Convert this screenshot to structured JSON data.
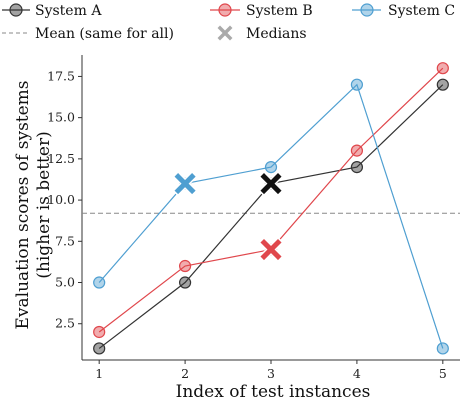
{
  "chart_data": {
    "type": "line",
    "xlabel": "Index of test instances",
    "ylabel_line1": "Evaluation scores of systems",
    "ylabel_line2": "(higher is better)",
    "x": [
      1,
      2,
      3,
      4,
      5
    ],
    "x_ticks": [
      "1",
      "2",
      "3",
      "4",
      "5"
    ],
    "y_ticks": [
      "2.5",
      "5.0",
      "7.5",
      "10.0",
      "12.5",
      "15.0",
      "17.5"
    ],
    "y_tick_values": [
      2.5,
      5.0,
      7.5,
      10.0,
      12.5,
      15.0,
      17.5
    ],
    "xlim": [
      0.8,
      5.2
    ],
    "ylim": [
      0.3,
      18.8
    ],
    "grid": false,
    "legend_position": "top",
    "series": [
      {
        "name": "System A",
        "color": "#333333",
        "values": [
          1,
          5,
          11,
          12,
          17
        ],
        "median": {
          "x": 3,
          "y": 11
        }
      },
      {
        "name": "System B",
        "color": "#e0474c",
        "values": [
          2,
          6,
          7,
          13,
          18
        ],
        "median": {
          "x": 3,
          "y": 7
        }
      },
      {
        "name": "System C",
        "color": "#4f9fd1",
        "values": [
          5,
          11,
          12,
          17,
          1
        ],
        "median": {
          "x": 2,
          "y": 11
        }
      }
    ],
    "mean_line": {
      "label": "Mean (same for all)",
      "value": 9.2,
      "color": "#888888"
    },
    "medians_legend_label": "Medians"
  }
}
